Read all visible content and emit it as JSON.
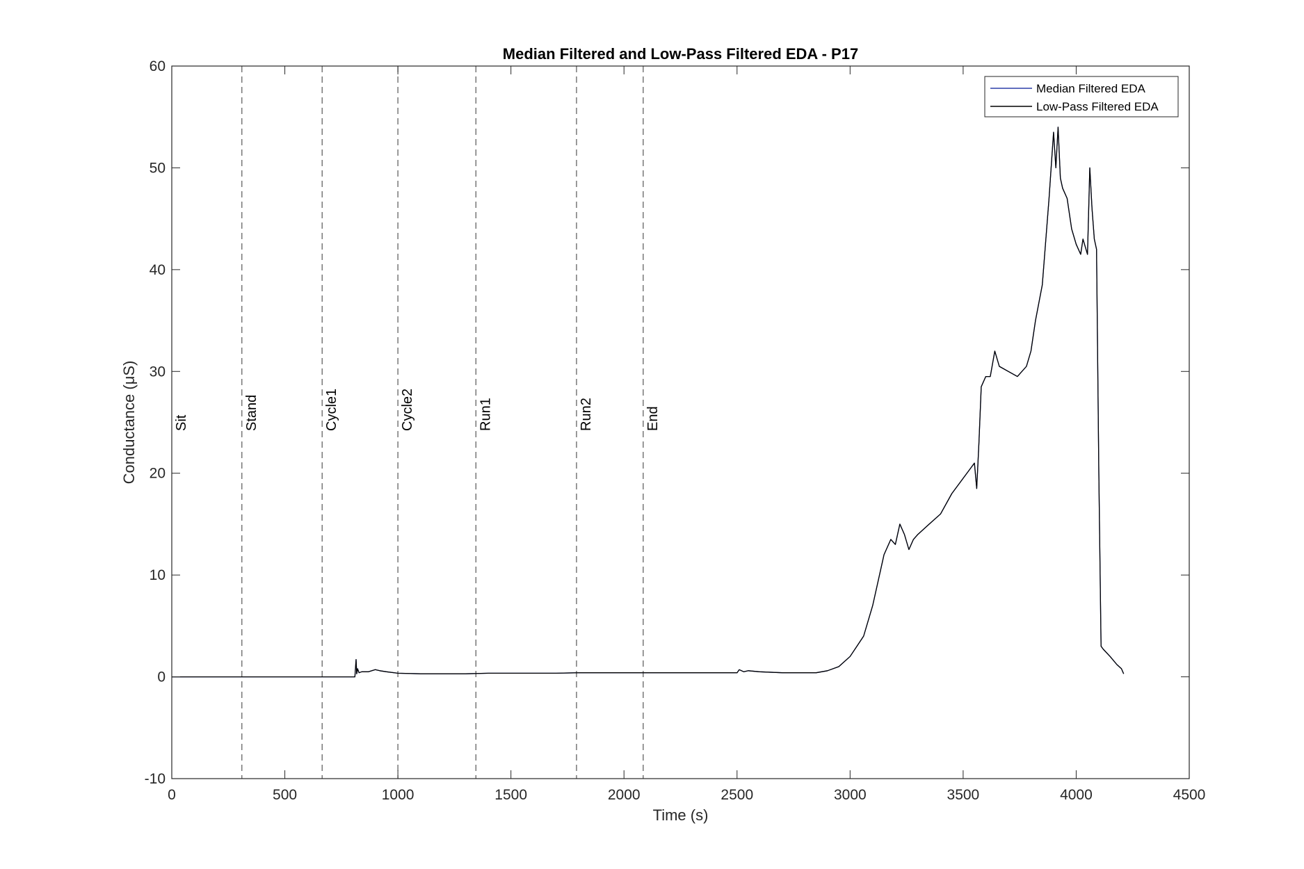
{
  "chart_data": {
    "type": "line",
    "title": "Median Filtered and Low-Pass Filtered EDA - P17",
    "xlabel": "Time (s)",
    "ylabel": "Conductance (μS)",
    "xlim": [
      0,
      4500
    ],
    "ylim": [
      -10,
      60
    ],
    "xticks": [
      0,
      500,
      1000,
      1500,
      2000,
      2500,
      3000,
      3500,
      4000,
      4500
    ],
    "yticks": [
      -10,
      0,
      10,
      20,
      30,
      40,
      50,
      60
    ],
    "grid": false,
    "legend_position": "top-right",
    "events": [
      {
        "label": "Sit",
        "x": 0
      },
      {
        "label": "Stand",
        "x": 310
      },
      {
        "label": "Cycle1",
        "x": 665
      },
      {
        "label": "Cycle2",
        "x": 1000
      },
      {
        "label": "Run1",
        "x": 1345
      },
      {
        "label": "Run2",
        "x": 1790
      },
      {
        "label": "End",
        "x": 2085
      }
    ],
    "series": [
      {
        "name": "Median Filtered EDA",
        "color": "#2b3fa8",
        "x": [
          0,
          800,
          810,
          815,
          818,
          822,
          828,
          840,
          870,
          900,
          920,
          950,
          1000,
          1100,
          1200,
          1300,
          1400,
          1500,
          1600,
          1700,
          1800,
          1900,
          2000,
          2100,
          2200,
          2300,
          2400,
          2500,
          2510,
          2530,
          2550,
          2600,
          2700,
          2800,
          2850,
          2900,
          2950,
          3000,
          3030,
          3060,
          3100,
          3150,
          3180,
          3200,
          3220,
          3240,
          3260,
          3280,
          3300,
          3350,
          3400,
          3450,
          3500,
          3550,
          3560,
          3570,
          3580,
          3600,
          3620,
          3640,
          3660,
          3700,
          3740,
          3780,
          3800,
          3820,
          3850,
          3880,
          3900,
          3910,
          3920,
          3930,
          3940,
          3960,
          3980,
          4000,
          4020,
          4030,
          4050,
          4060,
          4070,
          4080,
          4090,
          4100,
          4110,
          4120,
          4150,
          4180,
          4200,
          4210
        ],
        "y": [
          0,
          0,
          0,
          1.7,
          0.3,
          0.8,
          0.4,
          0.5,
          0.5,
          0.7,
          0.6,
          0.5,
          0.35,
          0.3,
          0.3,
          0.3,
          0.35,
          0.35,
          0.35,
          0.35,
          0.4,
          0.4,
          0.4,
          0.4,
          0.4,
          0.4,
          0.4,
          0.4,
          0.7,
          0.5,
          0.6,
          0.5,
          0.4,
          0.4,
          0.4,
          0.6,
          1.0,
          2.0,
          3.0,
          4.0,
          7.0,
          12.0,
          13.5,
          13.0,
          15.0,
          14.0,
          12.5,
          13.5,
          14.0,
          15.0,
          16.0,
          18.0,
          19.5,
          21.0,
          18.5,
          23.0,
          28.5,
          29.5,
          29.5,
          32.0,
          30.5,
          30.0,
          29.5,
          30.5,
          32.0,
          35.0,
          38.5,
          47.0,
          53.5,
          50.0,
          54.0,
          49.0,
          48.0,
          47.0,
          44.0,
          42.5,
          41.5,
          43.0,
          41.5,
          50.0,
          46.0,
          43.0,
          42.0,
          20.0,
          3.0,
          2.7,
          2.0,
          1.2,
          0.8,
          0.3
        ]
      },
      {
        "name": "Low-Pass Filtered EDA",
        "color": "#000000",
        "x": [
          0,
          800,
          810,
          815,
          818,
          822,
          828,
          840,
          870,
          900,
          920,
          950,
          1000,
          1100,
          1200,
          1300,
          1400,
          1500,
          1600,
          1700,
          1800,
          1900,
          2000,
          2100,
          2200,
          2300,
          2400,
          2500,
          2510,
          2530,
          2550,
          2600,
          2700,
          2800,
          2850,
          2900,
          2950,
          3000,
          3030,
          3060,
          3100,
          3150,
          3180,
          3200,
          3220,
          3240,
          3260,
          3280,
          3300,
          3350,
          3400,
          3450,
          3500,
          3550,
          3560,
          3570,
          3580,
          3600,
          3620,
          3640,
          3660,
          3700,
          3740,
          3780,
          3800,
          3820,
          3850,
          3880,
          3900,
          3910,
          3920,
          3930,
          3940,
          3960,
          3980,
          4000,
          4020,
          4030,
          4050,
          4060,
          4070,
          4080,
          4090,
          4100,
          4110,
          4120,
          4150,
          4180,
          4200,
          4210
        ],
        "y": [
          0,
          0,
          0,
          1.7,
          0.3,
          0.8,
          0.4,
          0.5,
          0.5,
          0.7,
          0.6,
          0.5,
          0.35,
          0.3,
          0.3,
          0.3,
          0.35,
          0.35,
          0.35,
          0.35,
          0.4,
          0.4,
          0.4,
          0.4,
          0.4,
          0.4,
          0.4,
          0.4,
          0.7,
          0.5,
          0.6,
          0.5,
          0.4,
          0.4,
          0.4,
          0.6,
          1.0,
          2.0,
          3.0,
          4.0,
          7.0,
          12.0,
          13.5,
          13.0,
          15.0,
          14.0,
          12.5,
          13.5,
          14.0,
          15.0,
          16.0,
          18.0,
          19.5,
          21.0,
          18.5,
          23.0,
          28.5,
          29.5,
          29.5,
          32.0,
          30.5,
          30.0,
          29.5,
          30.5,
          32.0,
          35.0,
          38.5,
          47.0,
          53.5,
          50.0,
          54.0,
          49.0,
          48.0,
          47.0,
          44.0,
          42.5,
          41.5,
          43.0,
          41.5,
          50.0,
          46.0,
          43.0,
          42.0,
          20.0,
          3.0,
          2.7,
          2.0,
          1.2,
          0.8,
          0.3
        ]
      }
    ]
  }
}
